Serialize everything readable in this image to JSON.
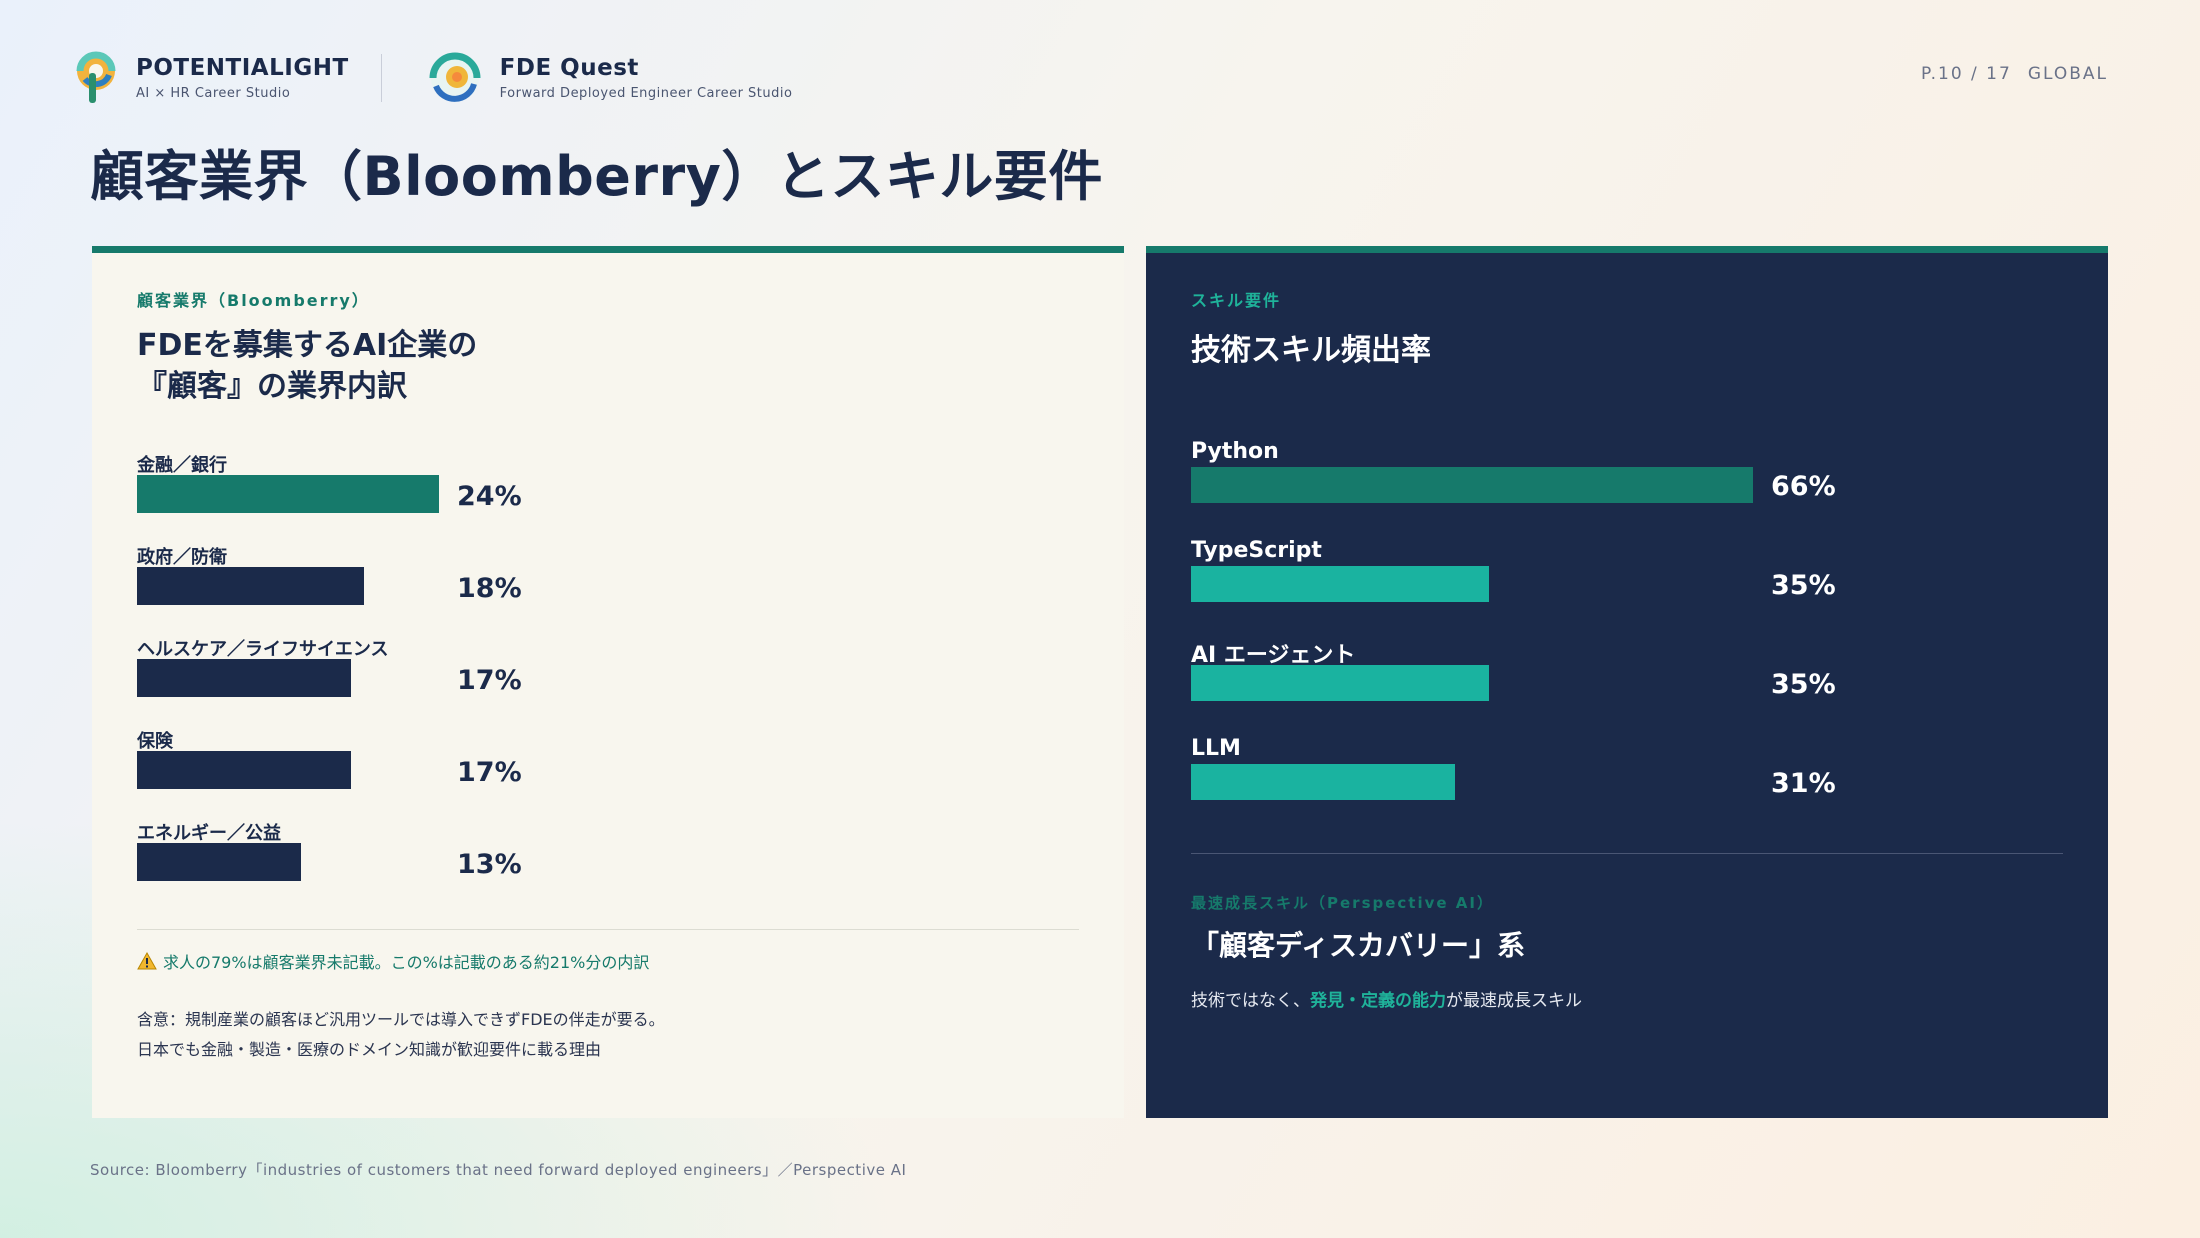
{
  "header": {
    "brand1": {
      "name": "POTENTIALIGHT",
      "sub": "AI × HR Career Studio"
    },
    "brand2": {
      "name": "FDE Quest",
      "sub": "Forward Deployed Engineer Career Studio"
    },
    "page": "P.10 / 17",
    "region": "GLOBAL"
  },
  "title": "顧客業界（Bloomberry）とスキル要件",
  "left_card": {
    "eyebrow": "顧客業界（Bloomberry）",
    "heading": "FDEを募集するAI企業の\n『顧客』の業界内訳",
    "warning": "求人の79%は顧客業界未記載。この%は記載のある約21%分の内訳",
    "implication_line1": "含意：規制産業の顧客ほど汎用ツールでは導入できずFDEの伴走が要る。",
    "implication_line2": "日本でも金融・製造・医療のドメイン知識が歓迎要件に載る理由"
  },
  "right_card": {
    "eyebrow": "スキル要件",
    "heading": "技術スキル頻出率",
    "eyebrow2": "最速成長スキル（Perspective AI）",
    "heading2": "「顧客ディスカバリー」系",
    "desc_pre": "技術ではなく、",
    "desc_hl": "発見・定義の能力",
    "desc_post": "が最速成長スキル"
  },
  "source": "Source: Bloomberry「industries of customers that need forward deployed engineers」／Perspective AI",
  "colors": {
    "navy": "#1b2a4a",
    "teal": "#167a6b",
    "bright_teal": "#1ab3a0"
  },
  "chart_data": [
    {
      "type": "bar",
      "orientation": "horizontal",
      "title": "FDEを募集するAI企業の『顧客』の業界内訳",
      "categories": [
        "金融／銀行",
        "政府／防衛",
        "ヘルスケア／ライフサイエンス",
        "保険",
        "エネルギー／公益"
      ],
      "values": [
        24,
        18,
        17,
        17,
        13
      ],
      "labels": [
        "24%",
        "18%",
        "17%",
        "17%",
        "13%"
      ],
      "unit": "%",
      "xlim": [
        0,
        24
      ],
      "highlight_index": 0
    },
    {
      "type": "bar",
      "orientation": "horizontal",
      "title": "技術スキル頻出率",
      "categories": [
        "Python",
        "TypeScript",
        "AI エージェント",
        "LLM"
      ],
      "values": [
        66,
        35,
        35,
        31
      ],
      "labels": [
        "66%",
        "35%",
        "35%",
        "31%"
      ],
      "unit": "%",
      "xlim": [
        0,
        66
      ],
      "highlight_index": 0
    }
  ]
}
